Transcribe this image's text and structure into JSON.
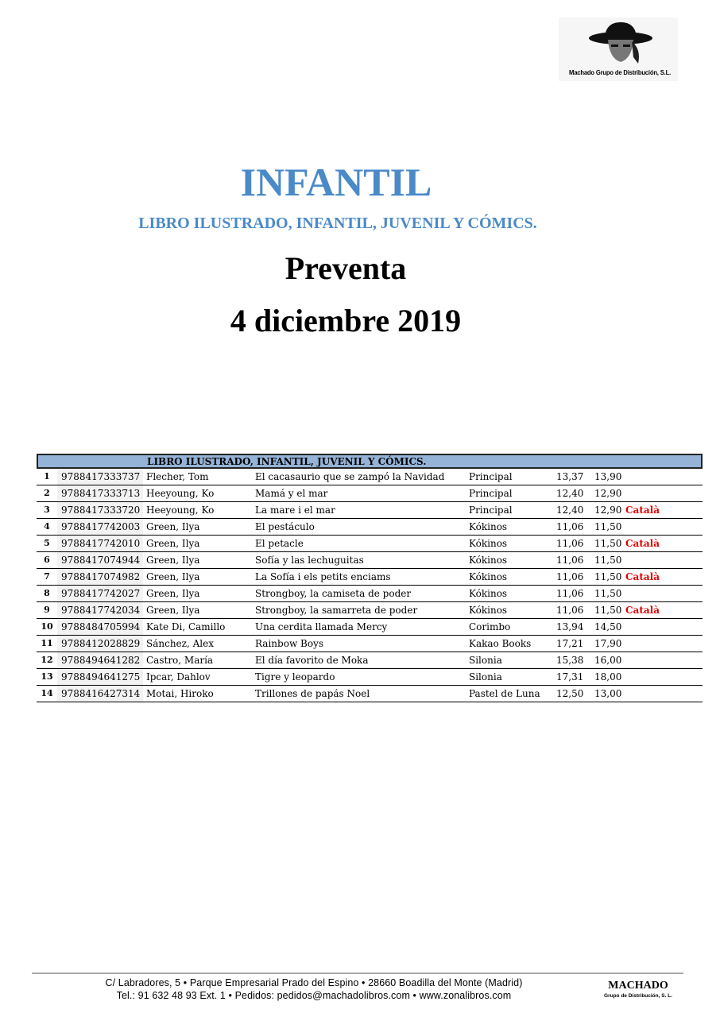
{
  "logo": {
    "text": "Machado Grupo de Distribución, S.L."
  },
  "title": "INFANTIL",
  "subtitle": "LIBRO ILUSTRADO, INFANTIL, JUVENIL Y CÓMICS.",
  "heading": "Preventa",
  "date": "4 diciembre 2019",
  "table": {
    "header": "LIBRO ILUSTRADO, INFANTIL, JUVENIL Y CÓMICS.",
    "rows": [
      {
        "num": "1",
        "isbn": "9788417333737",
        "author": "Flecher, Tom",
        "title": "El cacasaurio que se zampó la Navidad",
        "publisher": "Principal",
        "price": "13,37",
        "pvp": "13,90",
        "note": ""
      },
      {
        "num": "2",
        "isbn": "9788417333713",
        "author": "Heeyoung, Ko",
        "title": "Mamá y el mar",
        "publisher": "Principal",
        "price": "12,40",
        "pvp": "12,90",
        "note": ""
      },
      {
        "num": "3",
        "isbn": "9788417333720",
        "author": "Heeyoung, Ko",
        "title": "La mare i el mar",
        "publisher": "Principal",
        "price": "12,40",
        "pvp": "12,90",
        "note": "Català"
      },
      {
        "num": "4",
        "isbn": "9788417742003",
        "author": "Green, Ilya",
        "title": "El pestáculo",
        "publisher": "Kókinos",
        "price": "11,06",
        "pvp": "11,50",
        "note": ""
      },
      {
        "num": "5",
        "isbn": "9788417742010",
        "author": "Green, Ilya",
        "title": "El petacle",
        "publisher": "Kókinos",
        "price": "11,06",
        "pvp": "11,50",
        "note": "Català"
      },
      {
        "num": "6",
        "isbn": "9788417074944",
        "author": "Green, Ilya",
        "title": "Sofía y las lechuguitas",
        "publisher": "Kókinos",
        "price": "11,06",
        "pvp": "11,50",
        "note": ""
      },
      {
        "num": "7",
        "isbn": "9788417074982",
        "author": "Green, Ilya",
        "title": "La Sofía i els petits enciams",
        "publisher": "Kókinos",
        "price": "11,06",
        "pvp": "11,50",
        "note": "Català"
      },
      {
        "num": "8",
        "isbn": "9788417742027",
        "author": "Green, Ilya",
        "title": "Strongboy, la camiseta de poder",
        "publisher": "Kókinos",
        "price": "11,06",
        "pvp": "11,50",
        "note": ""
      },
      {
        "num": "9",
        "isbn": "9788417742034",
        "author": "Green, Ilya",
        "title": "Strongboy, la samarreta de poder",
        "publisher": "Kókinos",
        "price": "11,06",
        "pvp": "11,50",
        "note": "Català"
      },
      {
        "num": "10",
        "isbn": "9788484705994",
        "author": "Kate Di, Camillo",
        "title": "Una cerdita llamada Mercy",
        "publisher": "Corimbo",
        "price": "13,94",
        "pvp": "14,50",
        "note": ""
      },
      {
        "num": "11",
        "isbn": "9788412028829",
        "author": "Sánchez, Alex",
        "title": "Rainbow Boys",
        "publisher": "Kakao Books",
        "price": "17,21",
        "pvp": "17,90",
        "note": ""
      },
      {
        "num": "12",
        "isbn": "9788494641282",
        "author": "Castro, María",
        "title": "El día favorito de Moka",
        "publisher": "Silonia",
        "price": "15,38",
        "pvp": "16,00",
        "note": ""
      },
      {
        "num": "13",
        "isbn": "9788494641275",
        "author": "Ipcar, Dahlov",
        "title": "Tigre y leopardo",
        "publisher": "Silonia",
        "price": "17,31",
        "pvp": "18,00",
        "note": ""
      },
      {
        "num": "14",
        "isbn": "9788416427314",
        "author": "Motai, Hiroko",
        "title": "Trillones de papás Noel",
        "publisher": "Pastel de Luna",
        "price": "12,50",
        "pvp": "13,00",
        "note": ""
      }
    ]
  },
  "footer": {
    "address": "C/ Labradores, 5 • Parque Empresarial Prado del Espino • 28660 Boadilla del Monte (Madrid)",
    "contact": "Tel.: 91 632 48 93 Ext. 1  •  Pedidos: pedidos@machadolibros.com  •  www.zonalibros.com",
    "brand": "MACHADO",
    "brand_sub": "Grupo de Distribución, S. L."
  },
  "colors": {
    "title": "#4a8ac8",
    "table_header": "#95b3d7",
    "note": "#e00000"
  }
}
